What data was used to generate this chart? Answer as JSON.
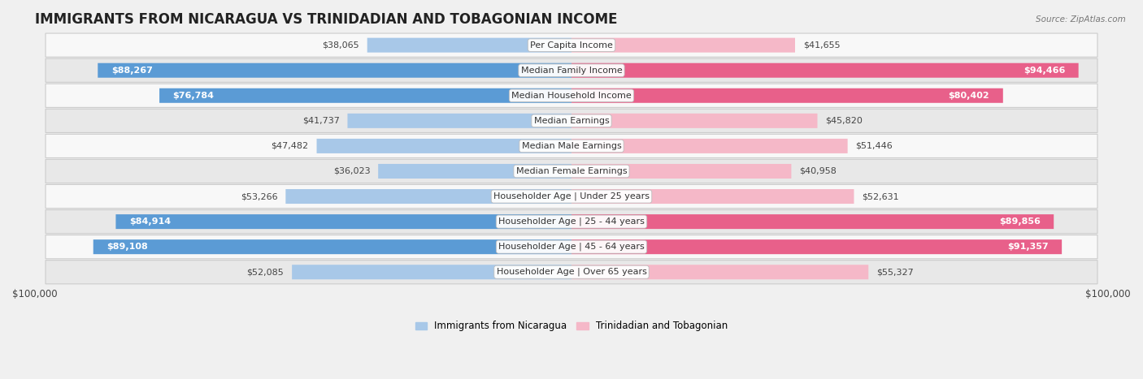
{
  "title": "IMMIGRANTS FROM NICARAGUA VS TRINIDADIAN AND TOBAGONIAN INCOME",
  "source": "Source: ZipAtlas.com",
  "categories": [
    "Per Capita Income",
    "Median Family Income",
    "Median Household Income",
    "Median Earnings",
    "Median Male Earnings",
    "Median Female Earnings",
    "Householder Age | Under 25 years",
    "Householder Age | 25 - 44 years",
    "Householder Age | 45 - 64 years",
    "Householder Age | Over 65 years"
  ],
  "nicaragua_values": [
    38065,
    88267,
    76784,
    41737,
    47482,
    36023,
    53266,
    84914,
    89108,
    52085
  ],
  "trinidad_values": [
    41655,
    94466,
    80402,
    45820,
    51446,
    40958,
    52631,
    89856,
    91357,
    55327
  ],
  "nicaragua_color_light": "#a8c8e8",
  "nicaragua_color_dark": "#5b9bd5",
  "trinidad_color_light": "#f5b8c8",
  "trinidad_color_dark": "#e8608a",
  "nicaragua_label": "Immigrants from Nicaragua",
  "trinidad_label": "Trinidadian and Tobagonian",
  "bar_height": 0.58,
  "x_max": 100000,
  "background_color": "#f0f0f0",
  "row_bg_even": "#f8f8f8",
  "row_bg_odd": "#e8e8e8",
  "label_fontsize": 8.0,
  "title_fontsize": 12,
  "nic_threshold": 70000,
  "tri_threshold": 70000
}
